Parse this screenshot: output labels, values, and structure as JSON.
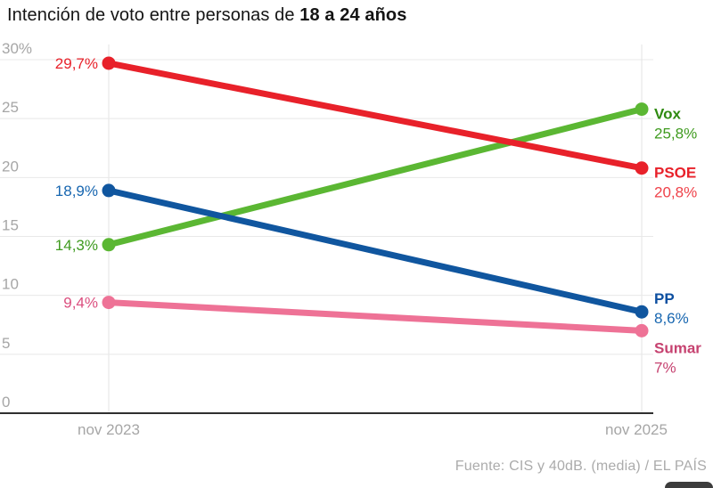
{
  "title": {
    "prefix": "Intención de voto entre personas de ",
    "highlight": "18 a 24 años"
  },
  "chart_data": {
    "type": "line",
    "categories": [
      "nov 2023",
      "nov 2025"
    ],
    "ylim": [
      0,
      30
    ],
    "grid": true,
    "legend_position": "right-of-line-ends",
    "yticks": [
      {
        "value": 0,
        "label": "0"
      },
      {
        "value": 5,
        "label": "5"
      },
      {
        "value": 10,
        "label": "10"
      },
      {
        "value": 15,
        "label": "15"
      },
      {
        "value": 20,
        "label": "20"
      },
      {
        "value": 25,
        "label": "25"
      },
      {
        "value": 30,
        "label": "30%"
      }
    ],
    "series": [
      {
        "name": "Vox",
        "values": [
          14.3,
          25.8
        ],
        "start_label": "14,3%",
        "end_label": "25,8%",
        "line_color": "#5BB733",
        "name_color": "#2E8A10",
        "value_color": "#3F9B1F",
        "start_label_color": "#3F9B1F"
      },
      {
        "name": "Sumar",
        "values": [
          9.4,
          7
        ],
        "start_label": "9,4%",
        "end_label": "7%",
        "line_color": "#EE7296",
        "name_color": "#C64270",
        "value_color": "#C64270",
        "start_label_color": "#DB4E7E"
      },
      {
        "name": "PP",
        "values": [
          18.9,
          8.6
        ],
        "start_label": "18,9%",
        "end_label": "8,6%",
        "line_color": "#10569F",
        "name_color": "#0D4FA0",
        "value_color": "#1766B0",
        "start_label_color": "#1766B0"
      },
      {
        "name": "PSOE",
        "values": [
          29.7,
          20.8
        ],
        "start_label": "29,7%",
        "end_label": "20,8%",
        "line_color": "#E8212A",
        "name_color": "#E8212A",
        "value_color": "#EF4149",
        "start_label_color": "#E8212A"
      }
    ]
  },
  "footer": {
    "source": "Fuente: CIS y 40dB. (media) / EL PAÍS"
  }
}
